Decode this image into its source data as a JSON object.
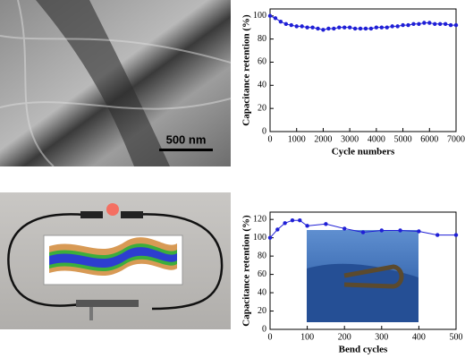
{
  "sem_image": {
    "scale_bar": "500 nm"
  },
  "chart_data": [
    {
      "type": "line",
      "xlabel": "Cycle numbers",
      "ylabel": "Capacitance retention (%)",
      "xlim": [
        0,
        7000
      ],
      "xticks": [
        0,
        1000,
        2000,
        3000,
        4000,
        5000,
        6000,
        7000
      ],
      "ylim": [
        0,
        106
      ],
      "yticks": [
        0,
        20,
        40,
        60,
        80,
        100
      ],
      "color": "#1f1fd6",
      "x": [
        0,
        200,
        400,
        600,
        800,
        1000,
        1200,
        1400,
        1600,
        1800,
        2000,
        2200,
        2400,
        2600,
        2800,
        3000,
        3200,
        3400,
        3600,
        3800,
        4000,
        4200,
        4400,
        4600,
        4800,
        5000,
        5200,
        5400,
        5600,
        5800,
        6000,
        6200,
        6400,
        6600,
        6800,
        7000
      ],
      "values": [
        100,
        98,
        95,
        93,
        92,
        91,
        91,
        90,
        90,
        89,
        88,
        89,
        89,
        90,
        90,
        90,
        89,
        89,
        89,
        89,
        90,
        90,
        90,
        91,
        91,
        92,
        92,
        93,
        93,
        94,
        94,
        93,
        93,
        93,
        92,
        92
      ]
    },
    {
      "type": "line",
      "xlabel": "Bend cycles",
      "ylabel": "Capacitance retention (%)",
      "xlim": [
        0,
        500
      ],
      "xticks": [
        0,
        100,
        200,
        300,
        400,
        500
      ],
      "ylim": [
        0,
        128
      ],
      "yticks": [
        0,
        20,
        40,
        60,
        80,
        100,
        120
      ],
      "color": "#1f1fd6",
      "x": [
        0,
        20,
        40,
        60,
        80,
        100,
        150,
        200,
        250,
        300,
        350,
        400,
        450,
        500
      ],
      "values": [
        100,
        109,
        116,
        119,
        119,
        113,
        115,
        110,
        106,
        108,
        108,
        107,
        103,
        103
      ]
    }
  ]
}
